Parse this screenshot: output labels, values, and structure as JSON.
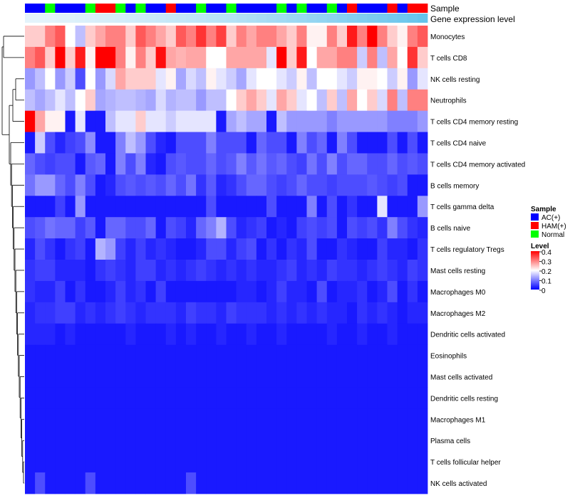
{
  "chart_data": {
    "type": "heatmap",
    "title": "",
    "annotation_tracks": {
      "sample_label": "Sample",
      "expression_label": "Gene expression level"
    },
    "legend": {
      "sample": {
        "title": "Sample",
        "entries": [
          {
            "label": "AC(+)",
            "color": "#0000ff"
          },
          {
            "label": "HAM(+)",
            "color": "#ff0000"
          },
          {
            "label": "Normal",
            "color": "#00ff00"
          }
        ]
      },
      "level": {
        "title": "Level",
        "range": [
          0,
          0.4
        ],
        "ticks": [
          "0.4",
          "0.3",
          "0.2",
          "0.1",
          "0"
        ],
        "colors": [
          "#0000ff",
          "#ffffff",
          "#ff0000"
        ]
      }
    },
    "samples": [
      "AC(+)",
      "AC(+)",
      "Normal",
      "AC(+)",
      "AC(+)",
      "AC(+)",
      "Normal",
      "HAM(+)",
      "HAM(+)",
      "Normal",
      "AC(+)",
      "Normal",
      "AC(+)",
      "AC(+)",
      "HAM(+)",
      "AC(+)",
      "AC(+)",
      "Normal",
      "AC(+)",
      "AC(+)",
      "Normal",
      "AC(+)",
      "AC(+)",
      "AC(+)",
      "AC(+)",
      "Normal",
      "AC(+)",
      "Normal",
      "AC(+)",
      "AC(+)",
      "Normal",
      "AC(+)",
      "HAM(+)",
      "AC(+)",
      "AC(+)",
      "AC(+)",
      "HAM(+)",
      "AC(+)",
      "HAM(+)",
      "HAM(+)"
    ],
    "expression_level": [
      0.05,
      0.06,
      0.07,
      0.09,
      0.1,
      0.12,
      0.13,
      0.15,
      0.16,
      0.18,
      0.2,
      0.22,
      0.24,
      0.26,
      0.28,
      0.3,
      0.32,
      0.34,
      0.36,
      0.38,
      0.4,
      0.43,
      0.46,
      0.49,
      0.52,
      0.55,
      0.58,
      0.61,
      0.64,
      0.67,
      0.7,
      0.73,
      0.76,
      0.79,
      0.82,
      0.85,
      0.88,
      0.91,
      0.95,
      0.99
    ],
    "rows": [
      {
        "label": "Monocytes",
        "values": [
          0.24,
          0.24,
          0.3,
          0.33,
          0.2,
          0.15,
          0.24,
          0.27,
          0.3,
          0.3,
          0.24,
          0.33,
          0.3,
          0.27,
          0.24,
          0.33,
          0.3,
          0.36,
          0.3,
          0.35,
          0.24,
          0.3,
          0.27,
          0.3,
          0.3,
          0.27,
          0.24,
          0.3,
          0.21,
          0.21,
          0.3,
          0.24,
          0.38,
          0.3,
          0.4,
          0.3,
          0.24,
          0.21,
          0.3,
          0.33
        ]
      },
      {
        "label": "T cells CD8",
        "values": [
          0.3,
          0.33,
          0.24,
          0.4,
          0.24,
          0.38,
          0.21,
          0.4,
          0.4,
          0.3,
          0.21,
          0.3,
          0.24,
          0.39,
          0.27,
          0.26,
          0.27,
          0.27,
          0.2,
          0.2,
          0.27,
          0.27,
          0.27,
          0.27,
          0.18,
          0.4,
          0.24,
          0.38,
          0.2,
          0.27,
          0.27,
          0.3,
          0.3,
          0.16,
          0.3,
          0.15,
          0.27,
          0.2,
          0.36,
          0.24
        ]
      },
      {
        "label": "NK cells resting",
        "values": [
          0.12,
          0.15,
          0.2,
          0.12,
          0.16,
          0.06,
          0.2,
          0.12,
          0.17,
          0.27,
          0.24,
          0.24,
          0.24,
          0.18,
          0.21,
          0.13,
          0.17,
          0.15,
          0.21,
          0.18,
          0.16,
          0.13,
          0.18,
          0.2,
          0.2,
          0.18,
          0.16,
          0.21,
          0.15,
          0.2,
          0.2,
          0.18,
          0.16,
          0.21,
          0.21,
          0.2,
          0.16,
          0.21,
          0.12,
          0.18
        ]
      },
      {
        "label": "Neutrophils",
        "values": [
          0.15,
          0.13,
          0.15,
          0.18,
          0.15,
          0.2,
          0.24,
          0.13,
          0.14,
          0.15,
          0.15,
          0.14,
          0.13,
          0.17,
          0.14,
          0.15,
          0.15,
          0.12,
          0.15,
          0.15,
          0.2,
          0.24,
          0.27,
          0.24,
          0.18,
          0.27,
          0.24,
          0.18,
          0.2,
          0.15,
          0.24,
          0.15,
          0.27,
          0.2,
          0.24,
          0.17,
          0.3,
          0.15,
          0.3,
          0.3
        ]
      },
      {
        "label": "T cells CD4 memory resting",
        "values": [
          0.4,
          0.27,
          0.21,
          0.21,
          0.02,
          0.18,
          0.02,
          0.02,
          0.15,
          0.18,
          0.18,
          0.24,
          0.18,
          0.18,
          0.16,
          0.18,
          0.18,
          0.18,
          0.18,
          0.02,
          0.13,
          0.15,
          0.13,
          0.13,
          0.02,
          0.15,
          0.12,
          0.12,
          0.12,
          0.12,
          0.1,
          0.12,
          0.12,
          0.12,
          0.12,
          0.12,
          0.1,
          0.1,
          0.1,
          0.12
        ]
      },
      {
        "label": "T cells CD4 naive",
        "values": [
          0.02,
          0.16,
          0.06,
          0.03,
          0.05,
          0.06,
          0.11,
          0.02,
          0.02,
          0.1,
          0.15,
          0.12,
          0.06,
          0.03,
          0.02,
          0.06,
          0.06,
          0.06,
          0.1,
          0.06,
          0.06,
          0.06,
          0.02,
          0.08,
          0.06,
          0.06,
          0.02,
          0.1,
          0.06,
          0.08,
          0.02,
          0.1,
          0.06,
          0.02,
          0.02,
          0.02,
          0.06,
          0.02,
          0.06,
          0.02
        ]
      },
      {
        "label": "T cells CD4 memory activated",
        "values": [
          0.08,
          0.06,
          0.05,
          0.06,
          0.06,
          0.02,
          0.07,
          0.08,
          0.02,
          0.1,
          0.06,
          0.1,
          0.03,
          0.02,
          0.06,
          0.07,
          0.06,
          0.06,
          0.08,
          0.06,
          0.07,
          0.1,
          0.07,
          0.09,
          0.07,
          0.08,
          0.06,
          0.05,
          0.09,
          0.06,
          0.1,
          0.06,
          0.08,
          0.08,
          0.06,
          0.06,
          0.08,
          0.06,
          0.07,
          0.06
        ]
      },
      {
        "label": "B cells memory",
        "values": [
          0.09,
          0.12,
          0.12,
          0.08,
          0.06,
          0.1,
          0.06,
          0.02,
          0.03,
          0.06,
          0.07,
          0.06,
          0.07,
          0.06,
          0.08,
          0.06,
          0.09,
          0.04,
          0.07,
          0.03,
          0.04,
          0.06,
          0.08,
          0.08,
          0.06,
          0.05,
          0.06,
          0.08,
          0.06,
          0.06,
          0.05,
          0.06,
          0.06,
          0.06,
          0.07,
          0.06,
          0.05,
          0.06,
          0.02,
          0.02
        ]
      },
      {
        "label": "T cells gamma delta",
        "values": [
          0.02,
          0.02,
          0.02,
          0.05,
          0.02,
          0.12,
          0.02,
          0.02,
          0.02,
          0.02,
          0.02,
          0.02,
          0.02,
          0.02,
          0.02,
          0.02,
          0.02,
          0.02,
          0.06,
          0.02,
          0.02,
          0.02,
          0.02,
          0.02,
          0.06,
          0.02,
          0.02,
          0.02,
          0.1,
          0.02,
          0.06,
          0.02,
          0.04,
          0.02,
          0.02,
          0.18,
          0.02,
          0.02,
          0.02,
          0.12
        ]
      },
      {
        "label": "B cells naive",
        "values": [
          0.06,
          0.07,
          0.09,
          0.08,
          0.08,
          0.05,
          0.07,
          0.02,
          0.08,
          0.08,
          0.06,
          0.06,
          0.08,
          0.02,
          0.06,
          0.05,
          0.03,
          0.08,
          0.1,
          0.14,
          0.06,
          0.03,
          0.04,
          0.05,
          0.02,
          0.03,
          0.02,
          0.05,
          0.06,
          0.05,
          0.06,
          0.02,
          0.06,
          0.05,
          0.06,
          0.04,
          0.1,
          0.06,
          0.04,
          0.03
        ]
      },
      {
        "label": "T cells regulatory  Tregs",
        "values": [
          0.03,
          0.06,
          0.04,
          0.02,
          0.04,
          0.05,
          0.02,
          0.14,
          0.12,
          0.05,
          0.03,
          0.05,
          0.03,
          0.04,
          0.03,
          0.02,
          0.02,
          0.03,
          0.06,
          0.06,
          0.03,
          0.05,
          0.06,
          0.02,
          0.04,
          0.02,
          0.04,
          0.03,
          0.06,
          0.02,
          0.02,
          0.04,
          0.03,
          0.02,
          0.02,
          0.05,
          0.03,
          0.03,
          0.02,
          0.04
        ]
      },
      {
        "label": "Mast cells resting",
        "values": [
          0.04,
          0.05,
          0.05,
          0.03,
          0.03,
          0.03,
          0.02,
          0.04,
          0.05,
          0.04,
          0.03,
          0.05,
          0.05,
          0.03,
          0.04,
          0.03,
          0.04,
          0.05,
          0.04,
          0.03,
          0.04,
          0.03,
          0.04,
          0.03,
          0.03,
          0.04,
          0.05,
          0.03,
          0.04,
          0.03,
          0.05,
          0.04,
          0.04,
          0.03,
          0.04,
          0.05,
          0.04,
          0.03,
          0.05,
          0.04
        ]
      },
      {
        "label": "Macrophages M0",
        "values": [
          0.04,
          0.03,
          0.03,
          0.05,
          0.02,
          0.04,
          0.02,
          0.02,
          0.03,
          0.05,
          0.03,
          0.04,
          0.02,
          0.05,
          0.02,
          0.02,
          0.02,
          0.02,
          0.02,
          0.02,
          0.02,
          0.03,
          0.03,
          0.02,
          0.03,
          0.05,
          0.03,
          0.03,
          0.02,
          0.06,
          0.02,
          0.03,
          0.03,
          0.04,
          0.02,
          0.03,
          0.06,
          0.02,
          0.04,
          0.02
        ]
      },
      {
        "label": "Macrophages M2",
        "values": [
          0.03,
          0.04,
          0.04,
          0.05,
          0.05,
          0.03,
          0.04,
          0.03,
          0.04,
          0.05,
          0.04,
          0.03,
          0.04,
          0.04,
          0.04,
          0.03,
          0.05,
          0.04,
          0.04,
          0.03,
          0.05,
          0.04,
          0.04,
          0.04,
          0.03,
          0.04,
          0.03,
          0.04,
          0.03,
          0.04,
          0.03,
          0.03,
          0.02,
          0.04,
          0.03,
          0.04,
          0.03,
          0.02,
          0.03,
          0.03
        ]
      },
      {
        "label": "Dendritic cells activated",
        "values": [
          0.03,
          0.03,
          0.03,
          0.02,
          0.03,
          0.02,
          0.02,
          0.02,
          0.02,
          0.02,
          0.03,
          0.02,
          0.02,
          0.02,
          0.03,
          0.02,
          0.03,
          0.02,
          0.02,
          0.03,
          0.02,
          0.02,
          0.03,
          0.02,
          0.02,
          0.03,
          0.02,
          0.02,
          0.02,
          0.02,
          0.03,
          0.02,
          0.02,
          0.03,
          0.02,
          0.02,
          0.03,
          0.02,
          0.02,
          0.02
        ]
      },
      {
        "label": "Eosinophils",
        "values": [
          0.02,
          0.02,
          0.02,
          0.02,
          0.02,
          0.02,
          0.02,
          0.02,
          0.02,
          0.02,
          0.02,
          0.02,
          0.02,
          0.02,
          0.02,
          0.02,
          0.02,
          0.02,
          0.02,
          0.02,
          0.02,
          0.02,
          0.02,
          0.02,
          0.02,
          0.02,
          0.02,
          0.02,
          0.02,
          0.02,
          0.02,
          0.02,
          0.02,
          0.02,
          0.02,
          0.02,
          0.02,
          0.02,
          0.02,
          0.02
        ]
      },
      {
        "label": "Mast cells activated",
        "values": [
          0.02,
          0.02,
          0.02,
          0.02,
          0.02,
          0.02,
          0.02,
          0.02,
          0.02,
          0.02,
          0.02,
          0.02,
          0.02,
          0.02,
          0.02,
          0.02,
          0.02,
          0.02,
          0.02,
          0.02,
          0.02,
          0.02,
          0.02,
          0.02,
          0.02,
          0.02,
          0.02,
          0.02,
          0.02,
          0.02,
          0.02,
          0.02,
          0.02,
          0.02,
          0.02,
          0.02,
          0.02,
          0.02,
          0.02,
          0.02
        ]
      },
      {
        "label": "Dendritic cells resting",
        "values": [
          0.02,
          0.02,
          0.02,
          0.02,
          0.02,
          0.02,
          0.02,
          0.02,
          0.02,
          0.02,
          0.02,
          0.02,
          0.02,
          0.02,
          0.02,
          0.02,
          0.02,
          0.02,
          0.02,
          0.02,
          0.02,
          0.02,
          0.02,
          0.02,
          0.02,
          0.02,
          0.02,
          0.02,
          0.02,
          0.02,
          0.02,
          0.02,
          0.02,
          0.02,
          0.02,
          0.02,
          0.02,
          0.02,
          0.02,
          0.02
        ]
      },
      {
        "label": "Macrophages M1",
        "values": [
          0.02,
          0.02,
          0.02,
          0.02,
          0.02,
          0.02,
          0.02,
          0.02,
          0.02,
          0.02,
          0.02,
          0.02,
          0.02,
          0.02,
          0.02,
          0.02,
          0.02,
          0.02,
          0.02,
          0.02,
          0.02,
          0.02,
          0.02,
          0.02,
          0.02,
          0.02,
          0.02,
          0.02,
          0.02,
          0.02,
          0.02,
          0.02,
          0.02,
          0.02,
          0.02,
          0.02,
          0.02,
          0.02,
          0.02,
          0.02
        ]
      },
      {
        "label": "Plasma cells",
        "values": [
          0.02,
          0.02,
          0.02,
          0.02,
          0.02,
          0.02,
          0.02,
          0.02,
          0.02,
          0.02,
          0.02,
          0.02,
          0.02,
          0.02,
          0.02,
          0.02,
          0.02,
          0.02,
          0.02,
          0.02,
          0.02,
          0.02,
          0.02,
          0.02,
          0.02,
          0.02,
          0.02,
          0.02,
          0.02,
          0.02,
          0.02,
          0.02,
          0.02,
          0.02,
          0.02,
          0.02,
          0.02,
          0.02,
          0.02,
          0.02
        ]
      },
      {
        "label": "T cells follicular helper",
        "values": [
          0.02,
          0.02,
          0.02,
          0.02,
          0.02,
          0.02,
          0.02,
          0.02,
          0.02,
          0.02,
          0.02,
          0.02,
          0.02,
          0.02,
          0.02,
          0.02,
          0.02,
          0.02,
          0.02,
          0.02,
          0.02,
          0.02,
          0.02,
          0.02,
          0.02,
          0.02,
          0.02,
          0.02,
          0.02,
          0.02,
          0.02,
          0.02,
          0.02,
          0.02,
          0.02,
          0.02,
          0.02,
          0.02,
          0.02,
          0.02
        ]
      },
      {
        "label": "NK cells activated",
        "values": [
          0.02,
          0.06,
          0.02,
          0.02,
          0.02,
          0.02,
          0.06,
          0.02,
          0.02,
          0.02,
          0.02,
          0.02,
          0.02,
          0.02,
          0.02,
          0.02,
          0.06,
          0.02,
          0.02,
          0.02,
          0.02,
          0.02,
          0.02,
          0.02,
          0.02,
          0.02,
          0.02,
          0.02,
          0.02,
          0.02,
          0.02,
          0.02,
          0.02,
          0.02,
          0.02,
          0.02,
          0.02,
          0.02,
          0.02,
          0.02
        ]
      }
    ]
  }
}
